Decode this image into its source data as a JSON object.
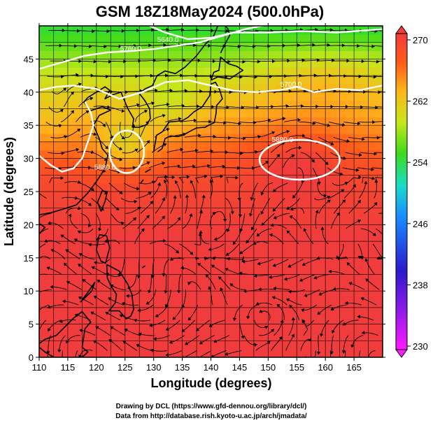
{
  "title": "GSM 18Z18May2024 (500.0hPa)",
  "footer": {
    "line1": "Drawing by DCL (https://www.gfd-dennou.org/library/dcl/)",
    "line2": "Data from http://database.rish.kyoto-u.ac.jp/arch/jmadata/"
  },
  "chart_data": {
    "type": "heatmap",
    "title": "GSM 18Z18May2024 (500.0hPa)",
    "xlabel": "Longitude (degrees)",
    "ylabel": "Latitude  (degrees)",
    "xlim": [
      110,
      170
    ],
    "ylim": [
      0,
      50
    ],
    "xticks": [
      "110",
      "115",
      "120",
      "125",
      "130",
      "135",
      "140",
      "145",
      "150",
      "155",
      "160",
      "165"
    ],
    "yticks": [
      "0",
      "5",
      "10",
      "15",
      "20",
      "25",
      "30",
      "35",
      "40",
      "45"
    ],
    "grid": true,
    "colorbar": {
      "labels": [
        "270",
        "262",
        "254",
        "246",
        "238",
        "230"
      ],
      "values": [
        270,
        262,
        254,
        246,
        238,
        230
      ],
      "range": [
        230,
        270
      ],
      "colors": [
        "#ff1aff",
        "#2a1acc",
        "#1a8cff",
        "#1adcc8",
        "#3cdc1a",
        "#c8e61a",
        "#ffb41a",
        "#ff5a1a",
        "#f03c3c"
      ]
    },
    "contours": [
      {
        "label": "5880.0"
      },
      {
        "label": "5880.0"
      },
      {
        "label": "5700.0"
      },
      {
        "label": "5760.0"
      },
      {
        "label": "5640.0"
      }
    ]
  },
  "colors": {
    "contour": "#ffffff",
    "streamline": "#000000",
    "coast": "#000000"
  }
}
